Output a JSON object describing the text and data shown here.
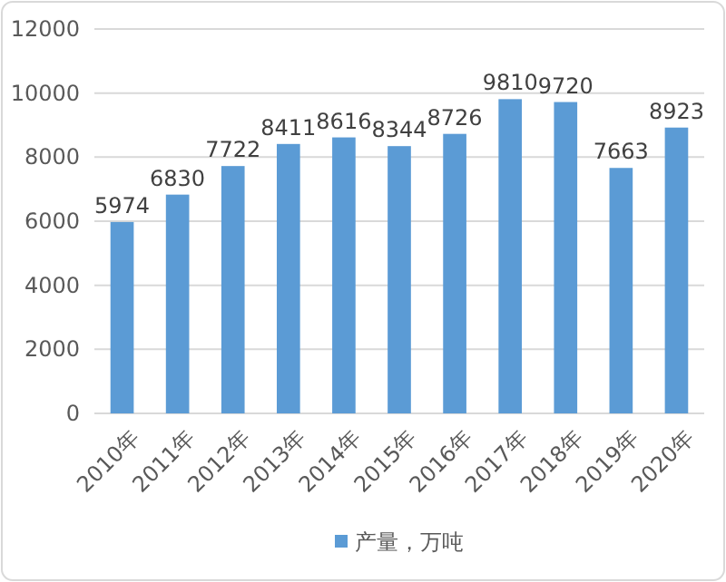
{
  "chart_data": {
    "type": "bar",
    "categories": [
      "2010年",
      "2011年",
      "2012年",
      "2013年",
      "2014年",
      "2015年",
      "2016年",
      "2017年",
      "2018年",
      "2019年",
      "2020年"
    ],
    "series": [
      {
        "name": "产量，万吨",
        "color": "#5b9bd5",
        "values": [
          5974,
          6830,
          7722,
          8411,
          8616,
          8344,
          8726,
          9810,
          9720,
          7663,
          8923
        ]
      }
    ],
    "ylim": [
      0,
      12000
    ],
    "yticks": [
      0,
      2000,
      4000,
      6000,
      8000,
      10000,
      12000
    ],
    "grid": "y",
    "legend": "bottom",
    "data_labels": true
  }
}
